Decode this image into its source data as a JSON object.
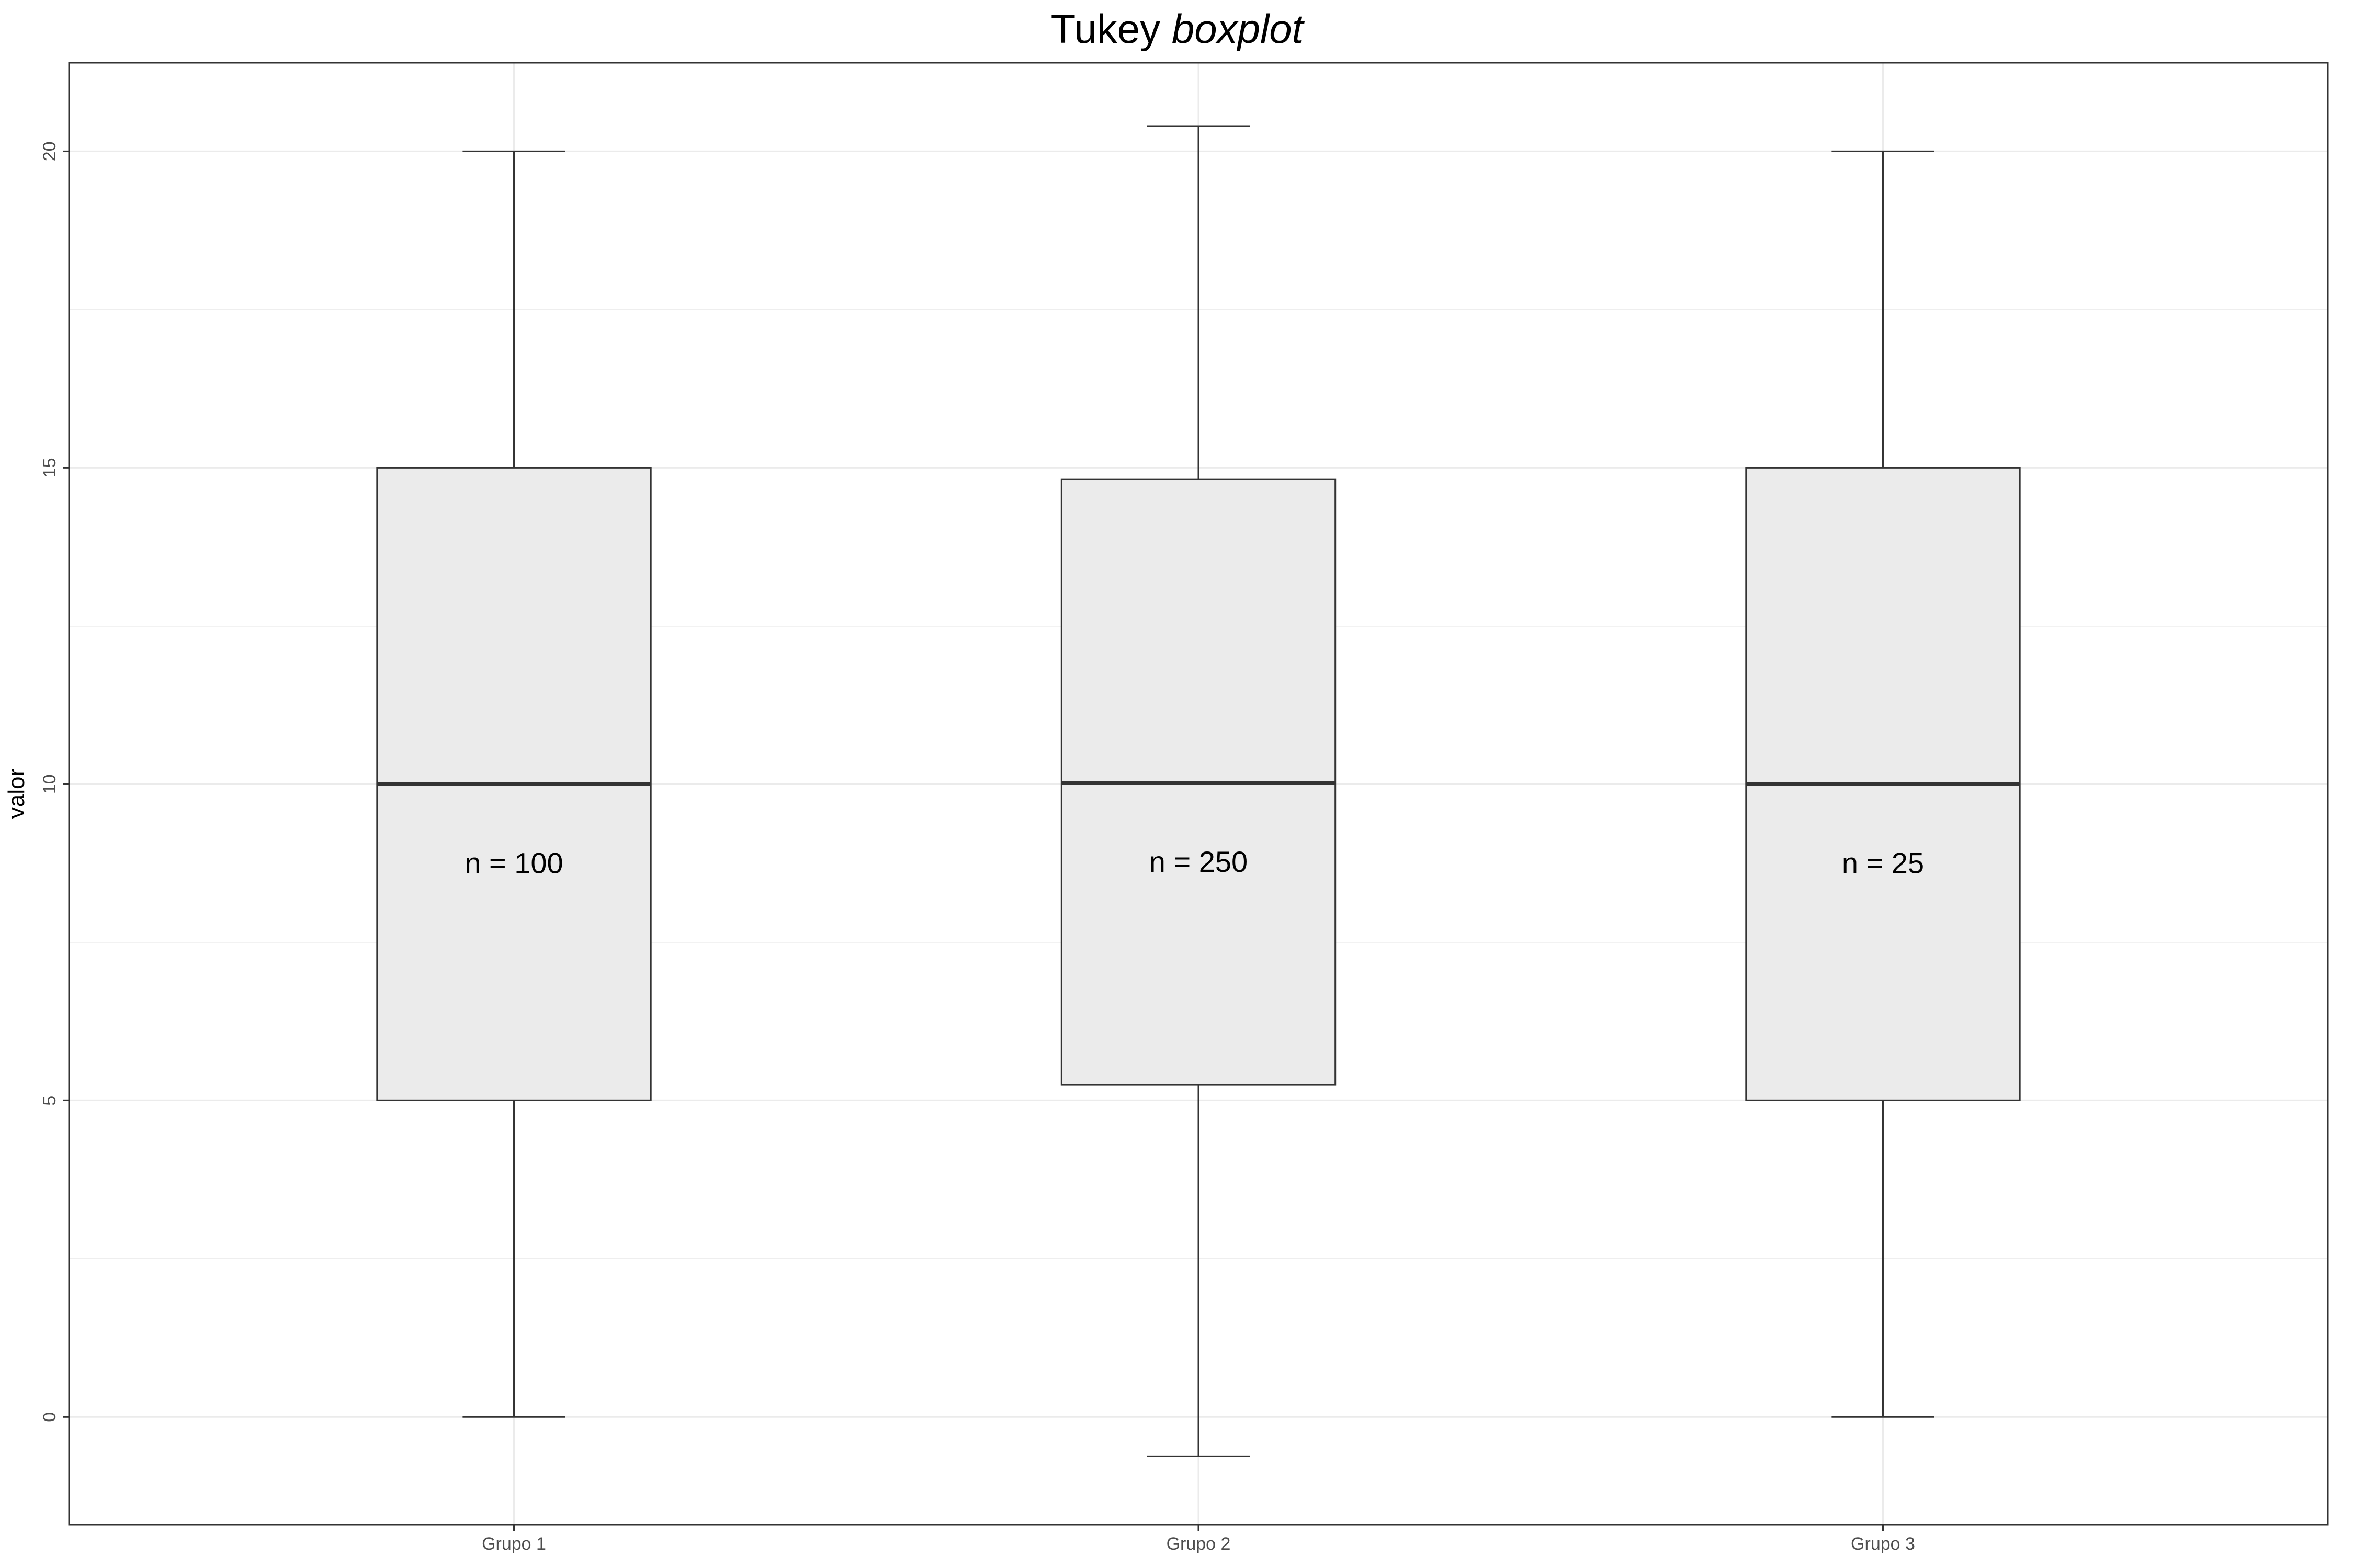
{
  "chart_data": {
    "type": "boxplot",
    "title": "Tukey",
    "title_italic": "boxplot",
    "xlabel": "",
    "ylabel": "valor",
    "ylim": [
      -1.7,
      21.4
    ],
    "yticks": [
      0,
      5,
      10,
      15,
      20
    ],
    "grid": true,
    "categories": [
      "Grupo 1",
      "Grupo 2",
      "Grupo 3"
    ],
    "boxes": [
      {
        "category": "Grupo 1",
        "whisker_low": 0,
        "q1": 5,
        "median": 10,
        "q3": 15,
        "whisker_high": 20,
        "label": "n = 100"
      },
      {
        "category": "Grupo 2",
        "whisker_low": -0.62,
        "q1": 5.25,
        "median": 10.02,
        "q3": 14.82,
        "whisker_high": 20.4,
        "label": "n = 250"
      },
      {
        "category": "Grupo 3",
        "whisker_low": 0,
        "q1": 5,
        "median": 10,
        "q3": 15,
        "whisker_high": 20,
        "label": "n = 25"
      }
    ],
    "box_fill": "#ebebeb",
    "box_stroke": "#333333",
    "grid_color": "#ebebeb",
    "panel_border": "#333333"
  }
}
